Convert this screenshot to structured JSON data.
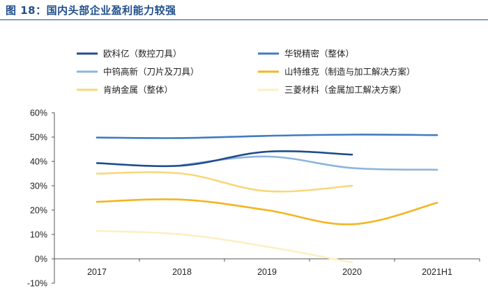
{
  "figure_title": "图 18：国内头部企业盈利能力较强",
  "chart_data": {
    "type": "line",
    "title": "",
    "xlabel": "",
    "ylabel": "",
    "categories": [
      "2017",
      "2018",
      "2019",
      "2020",
      "2021H1"
    ],
    "ylim": [
      -10,
      60
    ],
    "yticks": [
      "60%",
      "50%",
      "40%",
      "30%",
      "20%",
      "10%",
      "0%",
      "-10%"
    ],
    "ytick_values": [
      60,
      50,
      40,
      30,
      20,
      10,
      0,
      -10
    ],
    "grid": false,
    "legend_position": "top",
    "series": [
      {
        "name": "欧科亿（数控刀具）",
        "color": "#1f4e8c",
        "values": [
          39.3,
          38.3,
          44.0,
          42.8,
          null
        ]
      },
      {
        "name": "华锐精密（整体）",
        "color": "#3f7cc0",
        "values": [
          49.8,
          49.6,
          50.5,
          51.0,
          50.8
        ]
      },
      {
        "name": "中钨高新（刀片及刀具）",
        "color": "#8db4dd",
        "values": [
          null,
          38.5,
          42.0,
          37.3,
          36.6
        ]
      },
      {
        "name": "山特维克（制造与加工解决方案）",
        "color": "#f3b520",
        "values": [
          23.4,
          24.3,
          20.0,
          14.2,
          23.0
        ]
      },
      {
        "name": "肯纳金属（整体）",
        "color": "#f8d77a",
        "values": [
          35.0,
          35.0,
          27.8,
          30.0,
          null
        ]
      },
      {
        "name": "三菱材料（金属加工解决方案）",
        "color": "#fcefc4",
        "values": [
          11.5,
          10.0,
          5.0,
          -1.5,
          null
        ]
      }
    ]
  }
}
